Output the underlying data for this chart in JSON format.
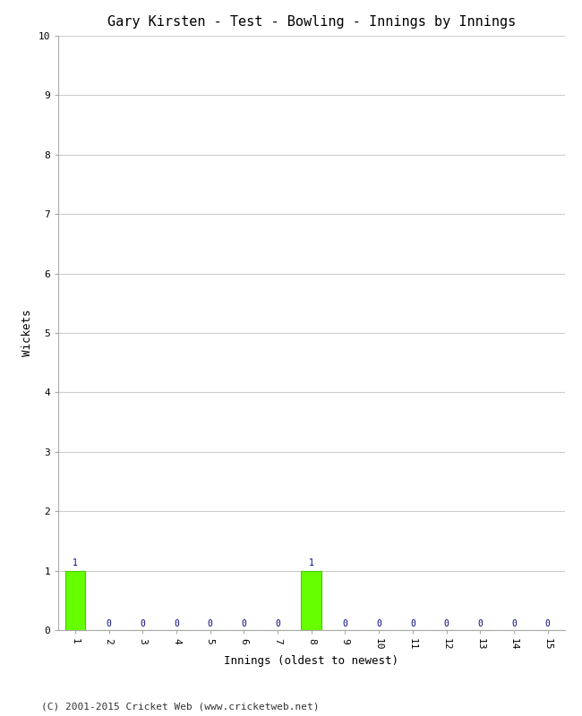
{
  "title": "Gary Kirsten - Test - Bowling - Innings by Innings",
  "xlabel": "Innings (oldest to newest)",
  "ylabel": "Wickets",
  "copyright": "(C) 2001-2015 Cricket Web (www.cricketweb.net)",
  "innings": [
    1,
    2,
    3,
    4,
    5,
    6,
    7,
    8,
    9,
    10,
    11,
    12,
    13,
    14,
    15
  ],
  "wickets": [
    1,
    0,
    0,
    0,
    0,
    0,
    0,
    1,
    0,
    0,
    0,
    0,
    0,
    0,
    0
  ],
  "bar_color": "#66ff00",
  "bar_edge_color": "#44cc00",
  "ylim": [
    0,
    10
  ],
  "yticks": [
    0,
    1,
    2,
    3,
    4,
    5,
    6,
    7,
    8,
    9,
    10
  ],
  "grid_color": "#cccccc",
  "background_color": "#ffffff",
  "title_fontsize": 11,
  "axis_label_fontsize": 9,
  "tick_fontsize": 8,
  "annotation_fontsize": 7,
  "copyright_fontsize": 8
}
